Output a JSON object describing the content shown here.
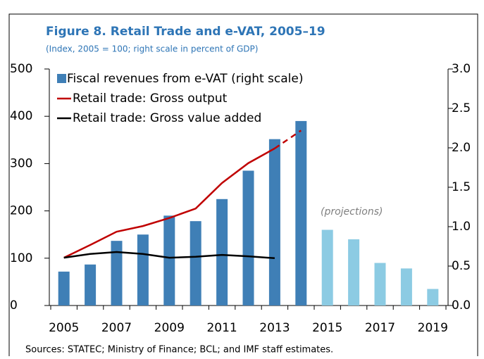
{
  "chart_data": {
    "type": "bar_line",
    "title": "Figure 8. Retail Trade and e-VAT, 2005–19",
    "subtitle": "(Index, 2005 = 100; right scale in percent of GDP)",
    "annotation": "(projections)",
    "source": "Sources: STATEC; Ministry of Finance; BCL; and IMF staff estimates.",
    "categories": [
      "2005",
      null,
      "2007",
      null,
      "2009",
      null,
      "2011",
      null,
      "2013",
      null,
      "2015",
      null,
      "2017",
      null,
      "2019"
    ],
    "series": [
      {
        "name": "Fiscal  revenues from e-VAT (right scale)",
        "type": "bar",
        "axis": "y2",
        "colors": [
          "#3f7fb6",
          "#3f7fb6",
          "#3f7fb6",
          "#3f7fb6",
          "#3f7fb6",
          "#3f7fb6",
          "#3f7fb6",
          "#3f7fb6",
          "#3f7fb6",
          "#3f7fb6",
          "#8ccbe3",
          "#8ccbe3",
          "#8ccbe3",
          "#8ccbe3",
          "#8ccbe3"
        ],
        "color": "#3f7fb6",
        "values": [
          0.43,
          0.52,
          0.82,
          0.9,
          1.14,
          1.07,
          1.35,
          1.71,
          2.11,
          2.34,
          0.96,
          0.84,
          0.54,
          0.47,
          0.21
        ]
      },
      {
        "name": "Retail trade: Gross output",
        "type": "line",
        "color": "#c00000",
        "dashed_from": 8,
        "values": [
          101,
          128,
          156,
          168,
          185,
          205,
          259,
          301,
          332,
          370,
          null,
          null,
          null,
          null,
          null
        ]
      },
      {
        "name": "Retail trade: Gross value added",
        "type": "line",
        "color": "#000000",
        "values": [
          101,
          109,
          113,
          109,
          101,
          103,
          107,
          104,
          100,
          null,
          null,
          null,
          null,
          null,
          null
        ]
      }
    ],
    "ylim": [
      0,
      500
    ],
    "yticks": [
      0,
      100,
      200,
      300,
      400,
      500
    ],
    "y2lim": [
      0,
      3
    ],
    "y2ticks": [
      {
        "value": 0,
        "label": "0.0"
      },
      {
        "value": 0.5,
        "label": "0.5"
      },
      {
        "value": 1,
        "label": "1.0"
      },
      {
        "value": 1.5,
        "label": "1.5"
      },
      {
        "value": 2,
        "label": "2.0"
      },
      {
        "value": 2.5,
        "label": "2.5"
      },
      {
        "value": 3,
        "label": "3.0"
      }
    ]
  }
}
